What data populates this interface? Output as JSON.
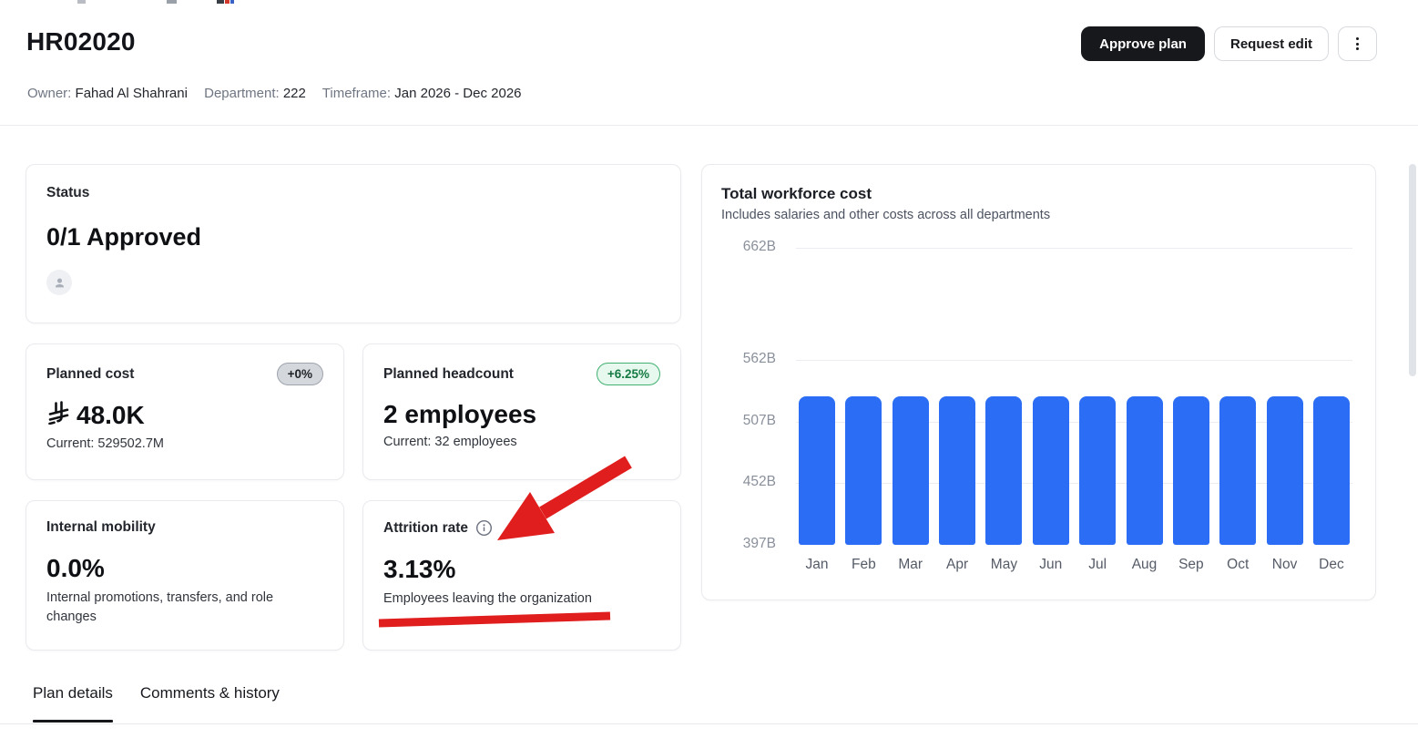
{
  "header": {
    "title": "HR02020",
    "meta": [
      {
        "label": "Owner:",
        "value": "Fahad Al Shahrani"
      },
      {
        "label": "Department:",
        "value": "222"
      },
      {
        "label": "Timeframe:",
        "value": "Jan 2026 - Dec 2026"
      }
    ],
    "actions": {
      "approve_label": "Approve plan",
      "request_edit_label": "Request edit",
      "more_icon": "kebab-menu-icon"
    }
  },
  "cards": {
    "status": {
      "label": "Status",
      "value": "0/1 Approved",
      "avatar_icon": "person-icon"
    },
    "planned_cost": {
      "label": "Planned cost",
      "badge": "+0%",
      "value": "48.0K",
      "current": "Current: 529502.7M",
      "currency_icon": "saudi-riyal-icon"
    },
    "planned_headcount": {
      "label": "Planned headcount",
      "badge": "+6.25%",
      "value": "2 employees",
      "current": "Current: 32 employees"
    },
    "internal_mobility": {
      "label": "Internal mobility",
      "value": "0.0%",
      "description": "Internal promotions, transfers, and role changes"
    },
    "attrition": {
      "label": "Attrition rate",
      "info_icon": "info-icon",
      "value": "3.13%",
      "description": "Employees leaving the organization"
    }
  },
  "chart_data": {
    "type": "bar",
    "title": "Total workforce cost",
    "subtitle": "Includes salaries and other costs across all departments",
    "categories": [
      "Jan",
      "Feb",
      "Mar",
      "Apr",
      "May",
      "Jun",
      "Jul",
      "Aug",
      "Sep",
      "Oct",
      "Nov",
      "Dec"
    ],
    "values": [
      529.5,
      529.5,
      529.5,
      529.5,
      529.5,
      529.5,
      529.5,
      529.5,
      529.5,
      529.5,
      529.5,
      529.5
    ],
    "unit": "B",
    "xlabel": "",
    "ylabel": "",
    "ylim": [
      397,
      662
    ],
    "yticks": [
      {
        "value": 662,
        "label": "662B"
      },
      {
        "value": 562,
        "label": "562B"
      },
      {
        "value": 507,
        "label": "507B"
      },
      {
        "value": 452,
        "label": "452B"
      },
      {
        "value": 397,
        "label": "397B"
      }
    ],
    "bar_color": "#2b6df4",
    "grid": true,
    "legend": false
  },
  "tabs": {
    "items": [
      {
        "label": "Plan details",
        "active": true
      },
      {
        "label": "Comments & history",
        "active": false
      }
    ]
  },
  "annotations": {
    "color": "#e01e1e",
    "arrow_points_to": "Attrition rate",
    "underline_under_text": "Employees leaving the organization"
  },
  "colors": {
    "primary_button_bg": "#17181c",
    "badge_neutral_bg": "#d4d7dc",
    "badge_positive_bg": "#e7f8ee",
    "badge_positive_text": "#157a43",
    "bar": "#2b6df4",
    "annotation_red": "#e01e1e"
  }
}
